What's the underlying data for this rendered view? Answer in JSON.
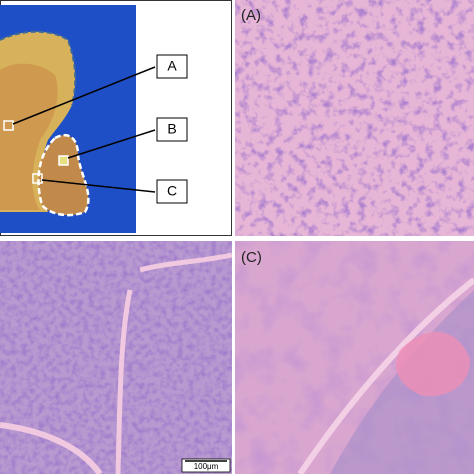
{
  "overview": {
    "labels": [
      "A",
      "B",
      "C"
    ]
  },
  "panels": [
    {
      "label": "(A)"
    },
    {
      "label": "(C)"
    }
  ],
  "scale_bar": "100μm"
}
